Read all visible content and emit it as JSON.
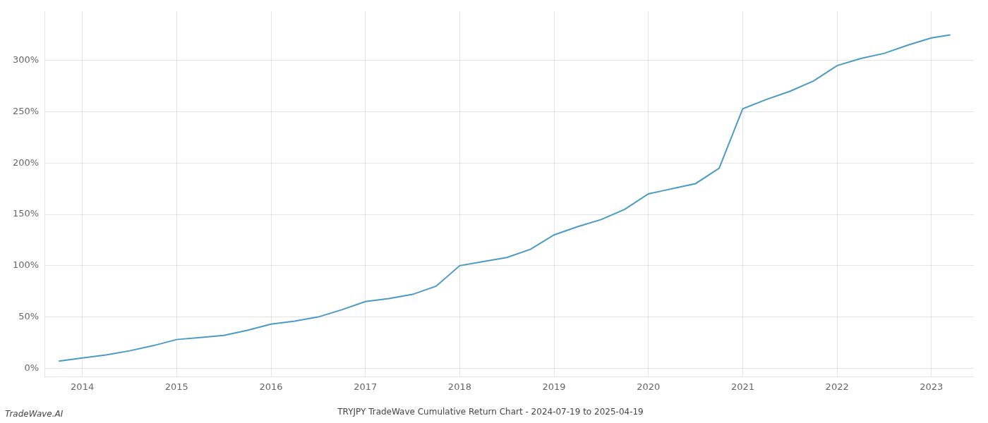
{
  "chart_data": {
    "type": "line",
    "title": "TRYJPY TradeWave Cumulative Return Chart - 2024-07-19 to 2025-04-19",
    "annotations": [
      "TradeWave.AI"
    ],
    "color": "#4a9bc4",
    "grid": true,
    "x": [
      2013.75,
      2014.0,
      2014.25,
      2014.5,
      2014.75,
      2015.0,
      2015.25,
      2015.5,
      2015.75,
      2016.0,
      2016.25,
      2016.5,
      2016.75,
      2017.0,
      2017.25,
      2017.5,
      2017.75,
      2018.0,
      2018.25,
      2018.5,
      2018.75,
      2019.0,
      2019.25,
      2019.5,
      2019.75,
      2020.0,
      2020.15,
      2020.3,
      2020.5,
      2020.75,
      2021.0,
      2021.25,
      2021.5,
      2021.75,
      2022.0,
      2022.25,
      2022.5,
      2022.75,
      2023.0,
      2023.2
    ],
    "values": [
      7,
      10,
      13,
      17,
      22,
      28,
      30,
      32,
      37,
      43,
      46,
      50,
      57,
      65,
      68,
      72,
      80,
      100,
      104,
      108,
      116,
      130,
      138,
      145,
      155,
      170,
      173,
      176,
      180,
      195,
      253,
      262,
      270,
      280,
      295,
      302,
      307,
      315,
      322,
      325
    ],
    "xlim": [
      2013.6,
      2023.45
    ],
    "ylim": [
      -8,
      348
    ],
    "xticks": [
      2014,
      2015,
      2016,
      2017,
      2018,
      2019,
      2020,
      2021,
      2022,
      2023
    ],
    "yticks": [
      {
        "value": 0,
        "label": "0%"
      },
      {
        "value": 50,
        "label": "50%"
      },
      {
        "value": 100,
        "label": "100%"
      },
      {
        "value": 150,
        "label": "150%"
      },
      {
        "value": 200,
        "label": "200%"
      },
      {
        "value": 250,
        "label": "250%"
      },
      {
        "value": 300,
        "label": "300%"
      }
    ]
  }
}
